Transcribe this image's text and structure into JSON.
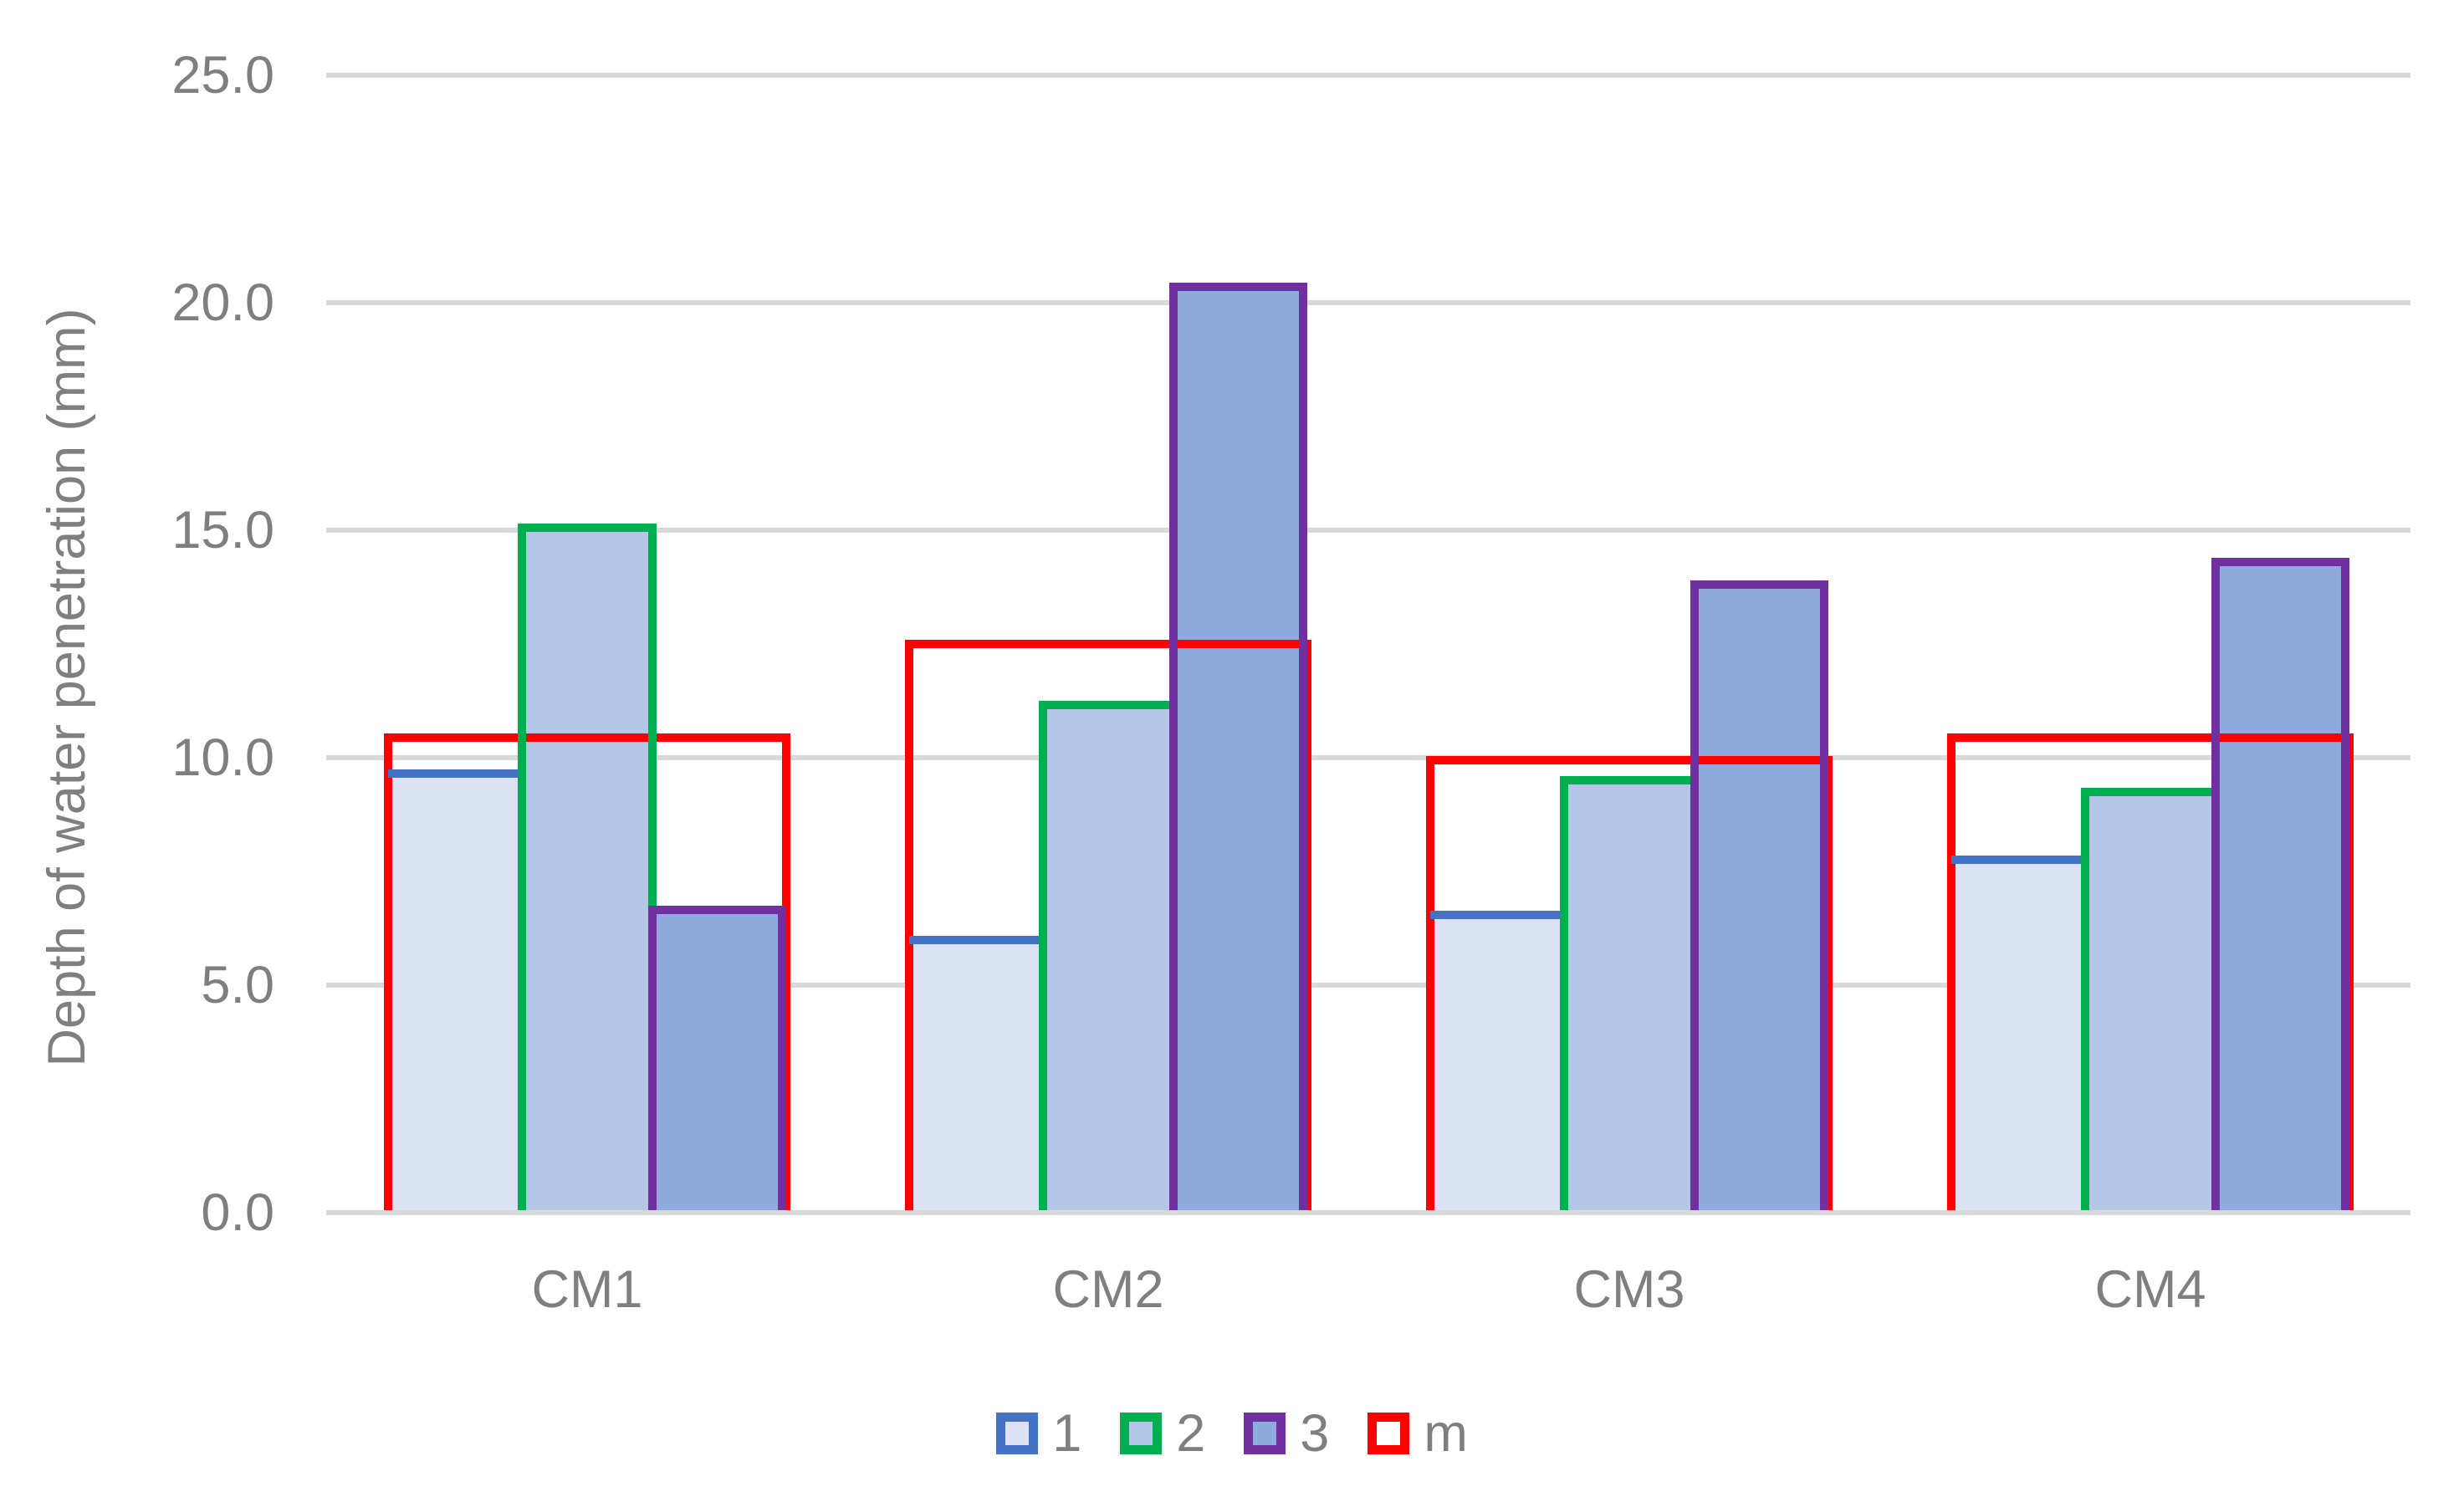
{
  "figure": {
    "background": "#FFFFFF"
  },
  "chart_data": {
    "type": "bar",
    "title": "",
    "xlabel": "",
    "ylabel": "Depth of water penetration (mm)",
    "categories": [
      "CM1",
      "CM2",
      "CM3",
      "CM4"
    ],
    "series": [
      {
        "name": "1",
        "values": [
          9.65,
          6.0,
          6.55,
          7.75
        ],
        "fill": "#DAE2F3",
        "border": "#4472C4",
        "style": "clustered-bar"
      },
      {
        "name": "2",
        "values": [
          15.05,
          11.15,
          9.5,
          9.25
        ],
        "fill": "#B4C7E7",
        "border": "#00B050",
        "style": "clustered-bar"
      },
      {
        "name": "3",
        "values": [
          6.65,
          20.35,
          13.8,
          14.3
        ],
        "fill": "#8FAADC",
        "border": "#7030A0",
        "style": "clustered-bar"
      },
      {
        "name": "m",
        "values": [
          10.45,
          12.5,
          9.95,
          10.45
        ],
        "fill": "none",
        "border": "#FF0000",
        "style": "group-outline"
      }
    ],
    "ylim": [
      0,
      25
    ],
    "y_ticks": [
      {
        "value": 25,
        "label": "25.0"
      },
      {
        "value": 20,
        "label": "20.0"
      },
      {
        "value": 15,
        "label": "15.0"
      },
      {
        "value": 10,
        "label": "10.0"
      },
      {
        "value": 5,
        "label": "5.0"
      },
      {
        "value": 0,
        "label": "0.0"
      }
    ],
    "grid": true,
    "legend_position": "bottom",
    "colors": {
      "gridline": "#D9D9D9",
      "axis_line": "#D9D9D9",
      "text": "#7F7F7F"
    }
  }
}
